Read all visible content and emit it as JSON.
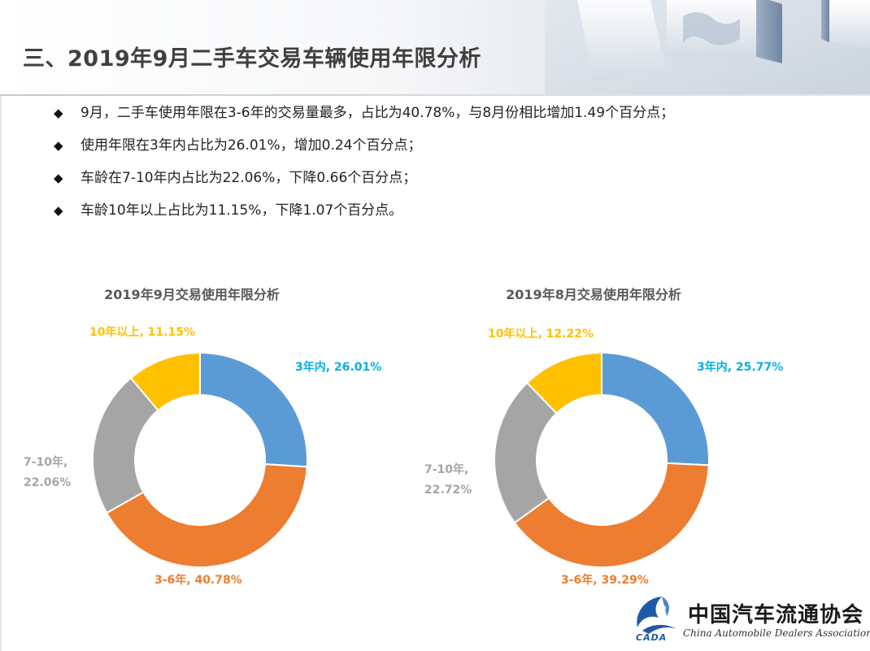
{
  "header": {
    "title": "三、2019年9月二手车交易车辆使用年限分析"
  },
  "bullets": [
    "9月，二手车使用年限在3-6年的交易量最多，占比为40.78%，与8月份相比增加1.49个百分点；",
    "使用年限在3年内占比为26.01%，增加0.24个百分点；",
    "车龄在7-10年内占比为22.06%，下降0.66个百分点；",
    "车龄10年以上占比为11.15%，下降1.07个百分点。"
  ],
  "bullet_symbol": "◆",
  "chart_data": [
    {
      "type": "pie",
      "title": "2019年9月交易使用年限分析",
      "categories": [
        "3年内",
        "3-6年",
        "7-10年",
        "10年以上"
      ],
      "values": [
        26.01,
        40.78,
        22.06,
        11.15
      ],
      "labels": [
        "3年内, 26.01%",
        "3-6年, 40.78%",
        "7-10年,\n22.06%",
        "10年以上, 11.15%"
      ],
      "colors": [
        "#5b9bd5",
        "#ed7d31",
        "#a5a5a5",
        "#ffc000"
      ],
      "label_colors": [
        "#00b0f0",
        "#ed7d31",
        "#a5a5a5",
        "#ffc000"
      ],
      "donut": true
    },
    {
      "type": "pie",
      "title": "2019年8月交易使用年限分析",
      "categories": [
        "3年内",
        "3-6年",
        "7-10年",
        "10年以上"
      ],
      "values": [
        25.77,
        39.29,
        22.72,
        12.22
      ],
      "labels": [
        "3年内, 25.77%",
        "3-6年, 39.29%",
        "7-10年,\n22.72%",
        "10年以上, 12.22%"
      ],
      "colors": [
        "#5b9bd5",
        "#ed7d31",
        "#a5a5a5",
        "#ffc000"
      ],
      "label_colors": [
        "#00b0f0",
        "#ed7d31",
        "#a5a5a5",
        "#ffc000"
      ],
      "donut": true
    }
  ],
  "logo": {
    "name_cn": "中国汽车流通协会",
    "name_en": "China Automobile Dealers Association",
    "abbr": "CADA"
  }
}
